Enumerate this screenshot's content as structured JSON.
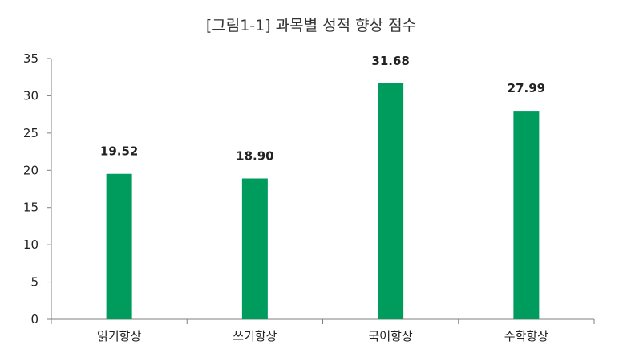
{
  "chart_data": {
    "type": "bar",
    "title": "[그림1-1] 과목별 성적 향상 점수",
    "categories": [
      "읽기향상",
      "쓰기향상",
      "국어향상",
      "수학향상"
    ],
    "values": [
      19.52,
      18.9,
      31.68,
      27.99
    ],
    "value_labels": [
      "19.52",
      "18.90",
      "31.68",
      "27.99"
    ],
    "ylim": [
      0,
      35
    ],
    "yticks": [
      0,
      5,
      10,
      15,
      20,
      25,
      30,
      35
    ],
    "grid": false,
    "legend": "none",
    "colors": {
      "bar": "#009c5e",
      "axis": "#7f7f7f",
      "text": "#222222"
    }
  }
}
